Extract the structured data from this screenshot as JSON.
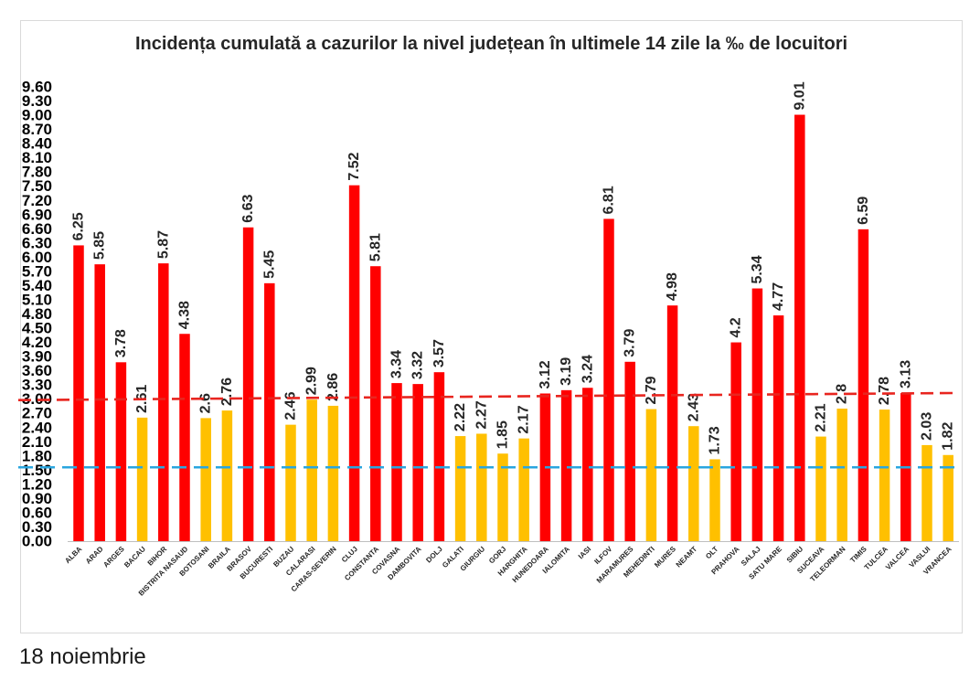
{
  "chart_data": {
    "type": "bar",
    "title": "Incidența cumulată a cazurilor la nivel județean în ultimele 14 zile la ‰ de locuitori",
    "categories": [
      "ALBA",
      "ARAD",
      "ARGES",
      "BACAU",
      "BIHOR",
      "BISTRITA NASAUD",
      "BOTOSANI",
      "BRAILA",
      "BRASOV",
      "BUCURESTI",
      "BUZAU",
      "CALARASI",
      "CARAS-SEVERIN",
      "CLUJ",
      "CONSTANTA",
      "COVASNA",
      "DAMBOVITA",
      "DOLJ",
      "GALATI",
      "GIURGIU",
      "GORJ",
      "HARGHITA",
      "HUNEDOARA",
      "IALOMITA",
      "IASI",
      "ILFOV",
      "MARAMURES",
      "MEHEDINTI",
      "MURES",
      "NEAMT",
      "OLT",
      "PRAHOVA",
      "SALAJ",
      "SATU MARE",
      "SIBIU",
      "SUCEAVA",
      "TELEORMAN",
      "TIMIS",
      "TULCEA",
      "VALCEA",
      "VASLUI",
      "VRANCEA"
    ],
    "values": [
      6.25,
      5.85,
      3.78,
      2.61,
      5.87,
      4.38,
      2.6,
      2.76,
      6.63,
      5.45,
      2.46,
      2.99,
      2.86,
      7.52,
      5.81,
      3.34,
      3.32,
      3.57,
      2.22,
      2.27,
      1.85,
      2.17,
      3.12,
      3.19,
      3.24,
      6.81,
      3.79,
      2.79,
      4.98,
      2.43,
      1.73,
      4.2,
      5.34,
      4.77,
      9.01,
      2.21,
      2.8,
      6.59,
      2.78,
      3.13,
      2.03,
      1.82
    ],
    "value_labels": [
      "6.25",
      "5.85",
      "3.78",
      "2.61",
      "5.87",
      "4.38",
      "2.6",
      "2.76",
      "6.63",
      "5.45",
      "2.46",
      "2.99",
      "2.86",
      "7.52",
      "5.81",
      "3.34",
      "3.32",
      "3.57",
      "2.22",
      "2.27",
      "1.85",
      "2.17",
      "3.12",
      "3.19",
      "3.24",
      "6.81",
      "3.79",
      "2.79",
      "4.98",
      "2.43",
      "1.73",
      "4.2",
      "5.34",
      "4.77",
      "9.01",
      "2.21",
      "2.8",
      "6.59",
      "2.78",
      "3.13",
      "2.03",
      "1.82"
    ],
    "bar_colors": [
      "#ff0000",
      "#ff0000",
      "#ff0000",
      "#ffc000",
      "#ff0000",
      "#ff0000",
      "#ffc000",
      "#ffc000",
      "#ff0000",
      "#ff0000",
      "#ffc000",
      "#ffc000",
      "#ffc000",
      "#ff0000",
      "#ff0000",
      "#ff0000",
      "#ff0000",
      "#ff0000",
      "#ffc000",
      "#ffc000",
      "#ffc000",
      "#ffc000",
      "#ff0000",
      "#ff0000",
      "#ff0000",
      "#ff0000",
      "#ff0000",
      "#ffc000",
      "#ff0000",
      "#ffc000",
      "#ffc000",
      "#ff0000",
      "#ff0000",
      "#ff0000",
      "#ff0000",
      "#ffc000",
      "#ffc000",
      "#ff0000",
      "#ffc000",
      "#ff0000",
      "#ffc000",
      "#ffc000"
    ],
    "ylim": [
      0,
      9.6
    ],
    "ytick_labels": [
      "0.00",
      "0.30",
      "0.60",
      "0.90",
      "1.20",
      "1.50",
      "1.80",
      "2.10",
      "2.40",
      "2.70",
      "3.00",
      "3.30",
      "3.60",
      "3.90",
      "4.20",
      "4.50",
      "4.80",
      "5.10",
      "5.40",
      "5.70",
      "6.00",
      "6.30",
      "6.60",
      "6.90",
      "7.20",
      "7.50",
      "7.80",
      "8.10",
      "8.40",
      "8.70",
      "9.00",
      "9.30",
      "9.60"
    ],
    "grid": false,
    "reference_lines": [
      {
        "start_value": 2.98,
        "end_value": 3.13,
        "color": "#e8251f"
      },
      {
        "start_value": 1.56,
        "end_value": 1.56,
        "color": "#2aa6df"
      }
    ]
  },
  "caption": {
    "date": "18 noiembrie"
  }
}
